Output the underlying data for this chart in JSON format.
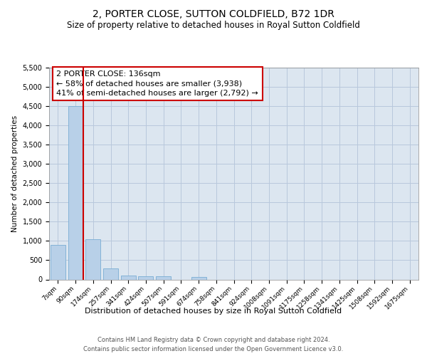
{
  "title": "2, PORTER CLOSE, SUTTON COLDFIELD, B72 1DR",
  "subtitle": "Size of property relative to detached houses in Royal Sutton Coldfield",
  "xlabel": "Distribution of detached houses by size in Royal Sutton Coldfield",
  "ylabel": "Number of detached properties",
  "categories": [
    "7sqm",
    "90sqm",
    "174sqm",
    "257sqm",
    "341sqm",
    "424sqm",
    "507sqm",
    "591sqm",
    "674sqm",
    "758sqm",
    "841sqm",
    "924sqm",
    "1008sqm",
    "1091sqm",
    "1175sqm",
    "1258sqm",
    "1341sqm",
    "1425sqm",
    "1508sqm",
    "1592sqm",
    "1675sqm"
  ],
  "values": [
    900,
    4500,
    1050,
    285,
    100,
    80,
    75,
    0,
    65,
    0,
    0,
    0,
    0,
    0,
    0,
    0,
    0,
    0,
    0,
    0,
    0
  ],
  "bar_color": "#b8d0e8",
  "bar_edgecolor": "#7aadd4",
  "vline_bar_index": 1,
  "vline_color": "#cc0000",
  "annotation_line1": "2 PORTER CLOSE: 136sqm",
  "annotation_line2": "← 58% of detached houses are smaller (3,938)",
  "annotation_line3": "41% of semi-detached houses are larger (2,792) →",
  "annotation_box_facecolor": "#ffffff",
  "annotation_box_edgecolor": "#cc0000",
  "ylim": [
    0,
    5500
  ],
  "yticks": [
    0,
    500,
    1000,
    1500,
    2000,
    2500,
    3000,
    3500,
    4000,
    4500,
    5000,
    5500
  ],
  "bg_color": "#ffffff",
  "plot_bg_color": "#dce6f0",
  "grid_color": "#b8c8dc",
  "title_fontsize": 10,
  "subtitle_fontsize": 8.5,
  "annotation_fontsize": 8,
  "xlabel_fontsize": 8,
  "ylabel_fontsize": 7.5,
  "tick_fontsize": 7,
  "xtick_fontsize": 6.5,
  "footer_text": "Contains HM Land Registry data © Crown copyright and database right 2024.\nContains public sector information licensed under the Open Government Licence v3.0.",
  "footer_fontsize": 6
}
